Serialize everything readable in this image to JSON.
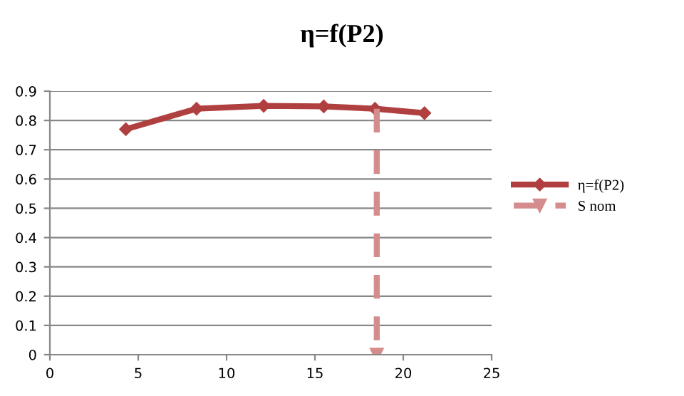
{
  "chart_data": {
    "type": "line",
    "title": "η=f(P2)",
    "series": [
      {
        "name": "η=f(P2)",
        "color": "#b04040",
        "x": [
          4.3,
          8.3,
          12.1,
          15.5,
          18.4,
          21.2
        ],
        "values": [
          0.77,
          0.84,
          0.85,
          0.848,
          0.84,
          0.825
        ],
        "marker": "diamond",
        "line_style": "solid"
      },
      {
        "name": "S nom",
        "color": "#d48c8c",
        "x": [
          18.5,
          18.5
        ],
        "values": [
          0.84,
          0
        ],
        "marker": "triangle",
        "line_style": "dashed"
      }
    ],
    "xlim": [
      0,
      25
    ],
    "xticks": [
      0,
      5,
      10,
      15,
      20,
      25
    ],
    "ylim": [
      0,
      0.9
    ],
    "yticks": [
      0,
      0.1,
      0.2,
      0.3,
      0.4,
      0.5,
      0.6,
      0.7,
      0.8,
      0.9
    ],
    "grid": "y",
    "legend": "right"
  }
}
